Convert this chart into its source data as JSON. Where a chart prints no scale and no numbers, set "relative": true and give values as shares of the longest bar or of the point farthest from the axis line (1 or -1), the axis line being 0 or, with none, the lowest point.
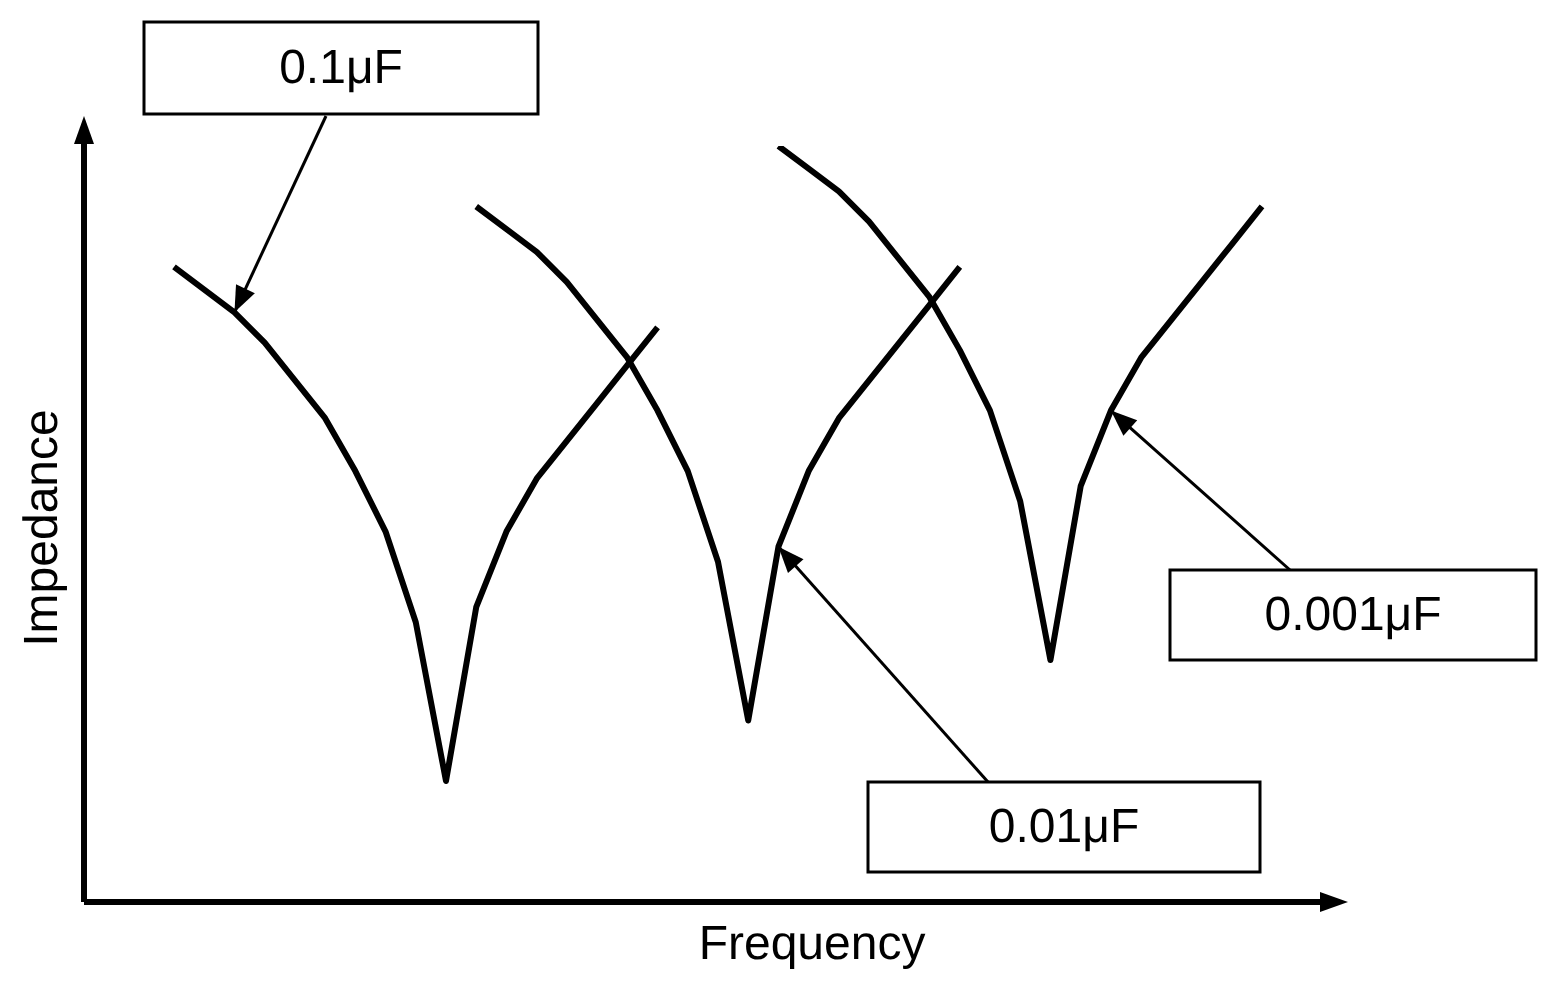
{
  "chart_data": {
    "type": "line",
    "xlabel": "Frequency",
    "ylabel": "Impedance",
    "relative": true,
    "legend": false,
    "marker": "none",
    "categories": [
      null,
      null,
      null,
      null,
      null,
      null,
      null,
      null,
      null,
      null,
      null,
      null,
      null,
      null,
      null,
      null,
      null,
      null,
      null,
      null,
      null,
      null,
      null,
      null,
      null,
      null,
      null,
      null,
      null,
      null,
      null,
      null,
      null,
      null,
      null,
      null,
      null
    ],
    "series": [
      {
        "name": "0.1μF",
        "color": "#000000",
        "values": [
          0.84,
          0.81,
          0.78,
          0.74,
          0.69,
          0.64,
          0.57,
          0.49,
          0.37,
          0.16,
          0.39,
          0.49,
          0.56,
          0.61,
          0.66,
          0.71,
          0.76,
          null,
          null,
          null,
          null,
          null,
          null,
          null,
          null,
          null,
          null,
          null,
          null,
          null,
          null,
          null,
          null,
          null,
          null,
          null,
          null
        ]
      },
      {
        "name": "0.01μF",
        "color": "#000000",
        "values": [
          null,
          null,
          null,
          null,
          null,
          null,
          null,
          null,
          null,
          null,
          0.92,
          0.89,
          0.86,
          0.82,
          0.77,
          0.72,
          0.65,
          0.57,
          0.45,
          0.24,
          0.47,
          0.57,
          0.64,
          0.69,
          0.74,
          0.79,
          0.84,
          null,
          null,
          null,
          null,
          null,
          null,
          null,
          null,
          null,
          null
        ]
      },
      {
        "name": "0.001μF",
        "color": "#000000",
        "values": [
          null,
          null,
          null,
          null,
          null,
          null,
          null,
          null,
          null,
          null,
          null,
          null,
          null,
          null,
          null,
          null,
          null,
          null,
          null,
          null,
          1.0,
          0.97,
          0.94,
          0.9,
          0.85,
          0.8,
          0.73,
          0.65,
          0.53,
          0.32,
          0.55,
          0.65,
          0.72,
          0.77,
          0.82,
          0.87,
          0.92
        ]
      }
    ]
  }
}
